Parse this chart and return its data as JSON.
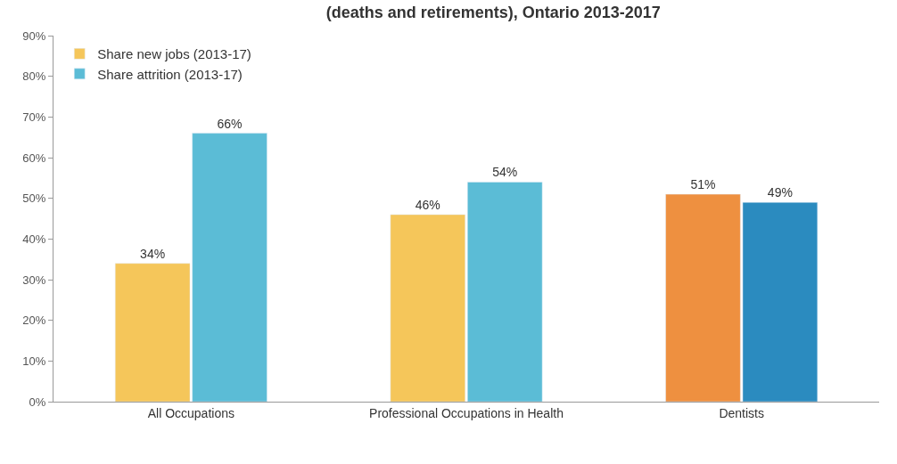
{
  "chart_data": {
    "type": "bar",
    "title": "(deaths and retirements), Ontario 2013-2017",
    "categories": [
      "All Occupations",
      "Professional Occupations in Health",
      "Dentists"
    ],
    "series": [
      {
        "name": "Share new jobs (2013-17)",
        "colors": [
          "#f5c65a",
          "#f5c65a",
          "#ee9040"
        ],
        "values": [
          34,
          46,
          51
        ],
        "value_labels": [
          "34%",
          "46%",
          "51%"
        ]
      },
      {
        "name": "Share attrition (2013-17)",
        "colors": [
          "#5bbcd6",
          "#5bbcd6",
          "#2b8bbf"
        ],
        "values": [
          66,
          54,
          49
        ],
        "value_labels": [
          "66%",
          "54%",
          "49%"
        ]
      }
    ],
    "ylim": [
      0,
      90
    ],
    "yticks": [
      {
        "value": 0,
        "label": "0%"
      },
      {
        "value": 10,
        "label": "10%"
      },
      {
        "value": 20,
        "label": "20%"
      },
      {
        "value": 30,
        "label": "30%"
      },
      {
        "value": 40,
        "label": "40%"
      },
      {
        "value": 50,
        "label": "50%"
      },
      {
        "value": 60,
        "label": "60%"
      },
      {
        "value": 70,
        "label": "70%"
      },
      {
        "value": 80,
        "label": "80%"
      },
      {
        "value": 90,
        "label": "90%"
      }
    ],
    "legend": "top left"
  }
}
